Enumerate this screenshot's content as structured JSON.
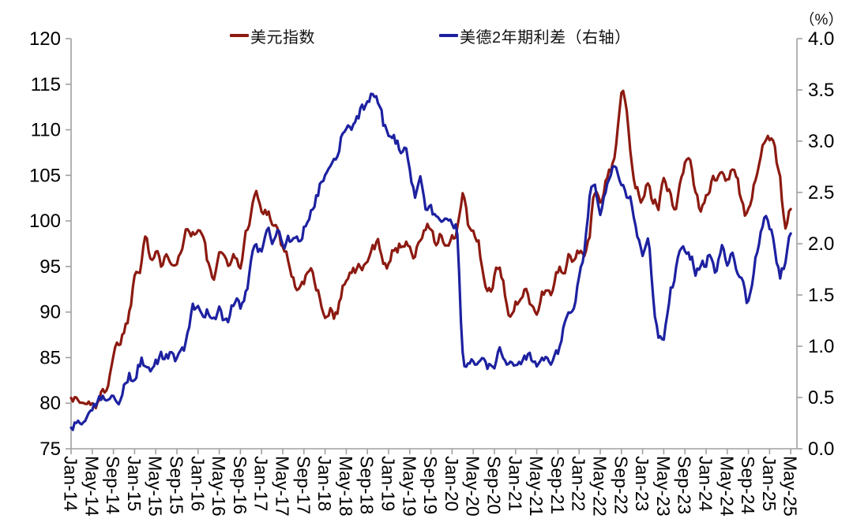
{
  "chart_data": {
    "type": "line",
    "title": "",
    "unit_right": "（%）",
    "legend_position": "top",
    "grid": false,
    "x_tick_labels": [
      "Jan-14",
      "May-14",
      "Sep-14",
      "Jan-15",
      "May-15",
      "Sep-15",
      "Jan-16",
      "May-16",
      "Sep-16",
      "Jan-17",
      "May-17",
      "Sep-17",
      "Jan-18",
      "May-18",
      "Sep-18",
      "Jan-19",
      "May-19",
      "Sep-19",
      "Jan-20",
      "May-20",
      "Sep-20",
      "Jan-21",
      "May-21",
      "Sep-21",
      "Jan-22",
      "May-22",
      "Sep-22",
      "Jan-23",
      "May-23",
      "Sep-23",
      "Jan-24",
      "May-24",
      "Sep-24",
      "Jan-25",
      "May-25"
    ],
    "x_months_per_tick": 4,
    "left_axis": {
      "min": 75,
      "max": 120,
      "step": 5
    },
    "right_axis": {
      "min": 0.0,
      "max": 4.0,
      "step": 0.5
    },
    "axis_color": "#a0a0a0",
    "tick_label_color": "#000000",
    "series": [
      {
        "name": "美元指数",
        "axis": "left",
        "color": "#8c1a11",
        "monthly_values": [
          81.0,
          80.4,
          80.1,
          79.8,
          80.2,
          80.0,
          81.0,
          82.6,
          85.6,
          86.6,
          88.2,
          89.9,
          94.2,
          95.2,
          99.0,
          96.0,
          96.2,
          95.2,
          97.2,
          95.9,
          96.2,
          96.9,
          99.6,
          98.7,
          99.2,
          97.8,
          94.9,
          93.7,
          95.6,
          95.9,
          95.7,
          95.9,
          95.4,
          98.2,
          101.2,
          103.0,
          100.9,
          101.1,
          100.4,
          99.1,
          97.1,
          95.8,
          93.4,
          92.9,
          92.9,
          94.6,
          93.1,
          92.2,
          89.2,
          90.6,
          90.0,
          91.8,
          94.0,
          94.6,
          94.4,
          95.1,
          95.0,
          97.0,
          97.3,
          96.1,
          95.6,
          96.6,
          97.3,
          97.5,
          97.8,
          96.2,
          98.1,
          98.9,
          99.2,
          97.4,
          98.3,
          96.5,
          97.6,
          99.0,
          102.5,
          99.9,
          98.3,
          97.3,
          93.4,
          92.2,
          93.9,
          94.0,
          91.8,
          89.9,
          90.6,
          90.9,
          93.2,
          91.3,
          90.1,
          92.4,
          92.1,
          92.7,
          94.3,
          94.1,
          96.0,
          95.7,
          96.6,
          96.7,
          98.4,
          103.2,
          101.9,
          104.9,
          106.0,
          108.9,
          113.8,
          111.2,
          106.0,
          103.6,
          102.0,
          104.9,
          102.6,
          101.7,
          104.2,
          103.0,
          101.9,
          103.7,
          106.2,
          106.7,
          103.4,
          101.4,
          103.4,
          104.2,
          104.5,
          106.0,
          104.6,
          105.9,
          104.2,
          101.7,
          100.6,
          104.1,
          105.8,
          108.4,
          109.6,
          107.5,
          104.2,
          99.3,
          101.3
        ]
      },
      {
        "name": "美德2年期利差（右轴）",
        "axis": "right",
        "color": "#1d21a0",
        "monthly_values": [
          0.2,
          0.23,
          0.27,
          0.32,
          0.34,
          0.42,
          0.5,
          0.54,
          0.6,
          0.47,
          0.58,
          0.72,
          0.65,
          0.84,
          0.82,
          0.74,
          0.8,
          0.86,
          0.9,
          0.9,
          0.86,
          0.93,
          1.08,
          1.33,
          1.32,
          1.24,
          1.34,
          1.25,
          1.38,
          1.26,
          1.31,
          1.42,
          1.4,
          1.52,
          1.8,
          1.96,
          1.92,
          2.06,
          2.04,
          2.1,
          2.0,
          2.02,
          2.06,
          2.06,
          2.16,
          2.32,
          2.45,
          2.57,
          2.7,
          2.82,
          2.86,
          3.05,
          3.12,
          3.16,
          3.26,
          3.32,
          3.36,
          3.48,
          3.42,
          3.18,
          3.12,
          3.05,
          2.95,
          2.92,
          2.72,
          2.45,
          2.58,
          2.32,
          2.35,
          2.25,
          2.26,
          2.2,
          2.16,
          2.05,
          0.95,
          0.9,
          0.86,
          0.88,
          0.84,
          0.82,
          0.83,
          0.92,
          0.86,
          0.82,
          0.84,
          0.81,
          0.86,
          0.85,
          0.83,
          0.9,
          0.86,
          0.88,
          0.96,
          1.14,
          1.34,
          1.36,
          1.7,
          1.95,
          2.45,
          2.58,
          2.32,
          2.56,
          2.72,
          2.76,
          2.62,
          2.5,
          2.38,
          2.15,
          1.95,
          2.08,
          1.45,
          1.15,
          1.05,
          1.45,
          1.68,
          1.88,
          1.96,
          1.9,
          1.76,
          1.76,
          1.82,
          1.9,
          1.76,
          1.94,
          1.8,
          1.9,
          1.72,
          1.56,
          1.4,
          1.76,
          2.05,
          2.25,
          2.12,
          1.95,
          1.72,
          1.86,
          2.1
        ]
      }
    ]
  }
}
